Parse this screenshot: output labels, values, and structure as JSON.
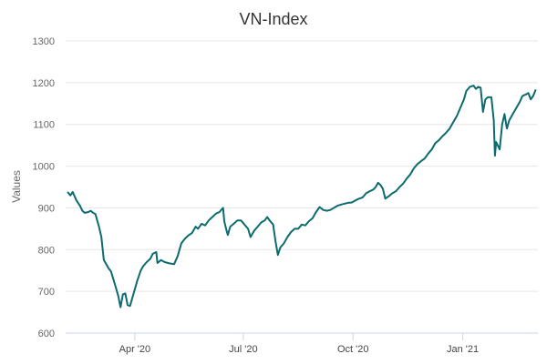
{
  "chart_data": {
    "type": "line",
    "title": "VN-Index",
    "xlabel": "",
    "ylabel": "Values",
    "ylim": [
      600,
      1300
    ],
    "y_ticks": [
      600,
      700,
      800,
      900,
      1000,
      1100,
      1200,
      1300
    ],
    "x_ticks": [
      {
        "date": "2020-04-01",
        "label": "Apr '20"
      },
      {
        "date": "2020-07-01",
        "label": "Jul '20"
      },
      {
        "date": "2020-10-01",
        "label": "Oct '20"
      },
      {
        "date": "2021-01-01",
        "label": "Jan '21"
      }
    ],
    "xlim": [
      "2020-02-03",
      "2021-03-05"
    ],
    "grid": true,
    "legend": "none",
    "colors": {
      "line": "#0c6b6e",
      "grid": "#e6e6e6",
      "axis": "#ccd6eb"
    },
    "series": [
      {
        "name": "",
        "points": [
          [
            "2020-02-05",
            937
          ],
          [
            "2020-02-07",
            930
          ],
          [
            "2020-02-09",
            938
          ],
          [
            "2020-02-12",
            918
          ],
          [
            "2020-02-15",
            905
          ],
          [
            "2020-02-17",
            893
          ],
          [
            "2020-02-19",
            888
          ],
          [
            "2020-02-22",
            890
          ],
          [
            "2020-02-24",
            893
          ],
          [
            "2020-02-26",
            888
          ],
          [
            "2020-02-28",
            885
          ],
          [
            "2020-03-02",
            855
          ],
          [
            "2020-03-04",
            830
          ],
          [
            "2020-03-06",
            775
          ],
          [
            "2020-03-08",
            765
          ],
          [
            "2020-03-10",
            755
          ],
          [
            "2020-03-12",
            748
          ],
          [
            "2020-03-15",
            720
          ],
          [
            "2020-03-18",
            690
          ],
          [
            "2020-03-20",
            662
          ],
          [
            "2020-03-22",
            693
          ],
          [
            "2020-03-24",
            695
          ],
          [
            "2020-03-26",
            667
          ],
          [
            "2020-03-28",
            665
          ],
          [
            "2020-03-31",
            695
          ],
          [
            "2020-04-03",
            725
          ],
          [
            "2020-04-06",
            750
          ],
          [
            "2020-04-08",
            760
          ],
          [
            "2020-04-11",
            770
          ],
          [
            "2020-04-14",
            778
          ],
          [
            "2020-04-16",
            790
          ],
          [
            "2020-04-19",
            794
          ],
          [
            "2020-04-20",
            768
          ],
          [
            "2020-04-23",
            775
          ],
          [
            "2020-04-26",
            770
          ],
          [
            "2020-04-30",
            767
          ],
          [
            "2020-05-04",
            765
          ],
          [
            "2020-05-07",
            785
          ],
          [
            "2020-05-10",
            815
          ],
          [
            "2020-05-13",
            826
          ],
          [
            "2020-05-16",
            834
          ],
          [
            "2020-05-19",
            840
          ],
          [
            "2020-05-22",
            855
          ],
          [
            "2020-05-24",
            850
          ],
          [
            "2020-05-27",
            862
          ],
          [
            "2020-05-30",
            858
          ],
          [
            "2020-06-02",
            870
          ],
          [
            "2020-06-05",
            878
          ],
          [
            "2020-06-08",
            886
          ],
          [
            "2020-06-11",
            890
          ],
          [
            "2020-06-14",
            900
          ],
          [
            "2020-06-15",
            868
          ],
          [
            "2020-06-17",
            845
          ],
          [
            "2020-06-18",
            835
          ],
          [
            "2020-06-20",
            855
          ],
          [
            "2020-06-23",
            862
          ],
          [
            "2020-06-26",
            870
          ],
          [
            "2020-06-29",
            870
          ],
          [
            "2020-07-02",
            860
          ],
          [
            "2020-07-05",
            850
          ],
          [
            "2020-07-07",
            830
          ],
          [
            "2020-07-10",
            845
          ],
          [
            "2020-07-13",
            855
          ],
          [
            "2020-07-16",
            865
          ],
          [
            "2020-07-19",
            870
          ],
          [
            "2020-07-21",
            878
          ],
          [
            "2020-07-23",
            870
          ],
          [
            "2020-07-26",
            860
          ],
          [
            "2020-07-28",
            820
          ],
          [
            "2020-07-30",
            787
          ],
          [
            "2020-08-01",
            805
          ],
          [
            "2020-08-04",
            815
          ],
          [
            "2020-08-07",
            830
          ],
          [
            "2020-08-10",
            842
          ],
          [
            "2020-08-13",
            850
          ],
          [
            "2020-08-16",
            850
          ],
          [
            "2020-08-19",
            860
          ],
          [
            "2020-08-22",
            858
          ],
          [
            "2020-08-25",
            868
          ],
          [
            "2020-08-28",
            875
          ],
          [
            "2020-08-31",
            890
          ],
          [
            "2020-09-03",
            902
          ],
          [
            "2020-09-06",
            895
          ],
          [
            "2020-09-09",
            893
          ],
          [
            "2020-09-12",
            895
          ],
          [
            "2020-09-15",
            900
          ],
          [
            "2020-09-18",
            905
          ],
          [
            "2020-09-21",
            908
          ],
          [
            "2020-09-24",
            910
          ],
          [
            "2020-09-27",
            912
          ],
          [
            "2020-09-30",
            913
          ],
          [
            "2020-10-03",
            918
          ],
          [
            "2020-10-06",
            922
          ],
          [
            "2020-10-09",
            925
          ],
          [
            "2020-10-12",
            935
          ],
          [
            "2020-10-15",
            940
          ],
          [
            "2020-10-18",
            944
          ],
          [
            "2020-10-20",
            950
          ],
          [
            "2020-10-22",
            960
          ],
          [
            "2020-10-24",
            955
          ],
          [
            "2020-10-26",
            946
          ],
          [
            "2020-10-28",
            922
          ],
          [
            "2020-10-31",
            928
          ],
          [
            "2020-11-03",
            935
          ],
          [
            "2020-11-06",
            940
          ],
          [
            "2020-11-09",
            950
          ],
          [
            "2020-11-12",
            958
          ],
          [
            "2020-11-15",
            970
          ],
          [
            "2020-11-18",
            980
          ],
          [
            "2020-11-21",
            995
          ],
          [
            "2020-11-24",
            1005
          ],
          [
            "2020-11-27",
            1012
          ],
          [
            "2020-11-30",
            1018
          ],
          [
            "2020-12-03",
            1030
          ],
          [
            "2020-12-06",
            1040
          ],
          [
            "2020-12-09",
            1055
          ],
          [
            "2020-12-12",
            1062
          ],
          [
            "2020-12-15",
            1072
          ],
          [
            "2020-12-18",
            1080
          ],
          [
            "2020-12-21",
            1090
          ],
          [
            "2020-12-24",
            1105
          ],
          [
            "2020-12-27",
            1120
          ],
          [
            "2020-12-30",
            1140
          ],
          [
            "2021-01-02",
            1160
          ],
          [
            "2021-01-04",
            1180
          ],
          [
            "2021-01-07",
            1190
          ],
          [
            "2021-01-10",
            1193
          ],
          [
            "2021-01-12",
            1185
          ],
          [
            "2021-01-14",
            1190
          ],
          [
            "2021-01-16",
            1188
          ],
          [
            "2021-01-18",
            1130
          ],
          [
            "2021-01-20",
            1160
          ],
          [
            "2021-01-22",
            1165
          ],
          [
            "2021-01-25",
            1165
          ],
          [
            "2021-01-27",
            1110
          ],
          [
            "2021-01-28",
            1025
          ],
          [
            "2021-01-29",
            1058
          ],
          [
            "2021-02-01",
            1040
          ],
          [
            "2021-02-03",
            1100
          ],
          [
            "2021-02-05",
            1125
          ],
          [
            "2021-02-07",
            1090
          ],
          [
            "2021-02-09",
            1110
          ],
          [
            "2021-02-12",
            1125
          ],
          [
            "2021-02-15",
            1140
          ],
          [
            "2021-02-18",
            1155
          ],
          [
            "2021-02-20",
            1168
          ],
          [
            "2021-02-23",
            1172
          ],
          [
            "2021-02-25",
            1175
          ],
          [
            "2021-02-27",
            1160
          ],
          [
            "2021-03-01",
            1168
          ],
          [
            "2021-03-03",
            1182
          ]
        ]
      }
    ]
  }
}
